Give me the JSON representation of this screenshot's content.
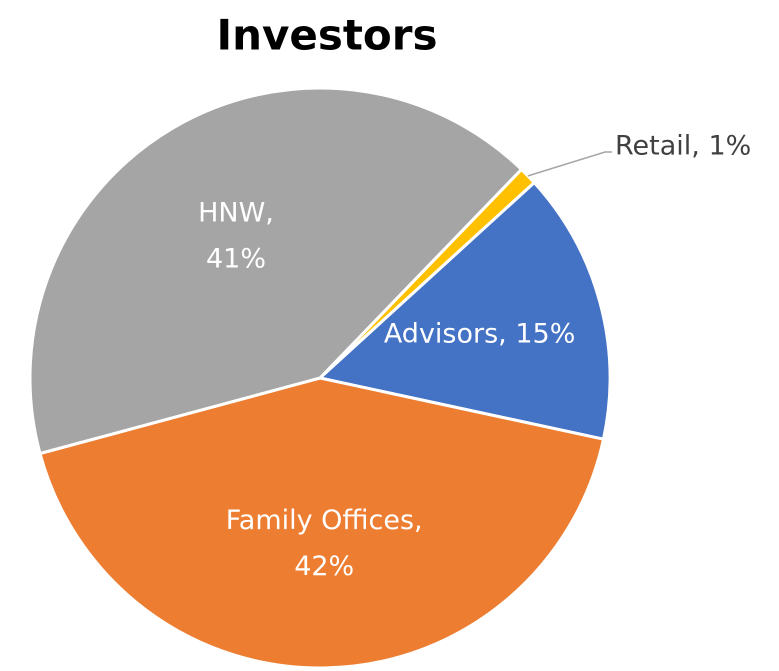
{
  "chart_data": {
    "type": "pie",
    "title": "Investors",
    "values": [
      1,
      15,
      42,
      41
    ],
    "value_labels": [
      "Retail, 1%",
      "Advisors, 15%",
      "Family Offices, 42%",
      "HNW, 41%"
    ],
    "colors": [
      "#ffc000",
      "#4472c4",
      "#ed7d31",
      "#a5a5a5"
    ]
  }
}
